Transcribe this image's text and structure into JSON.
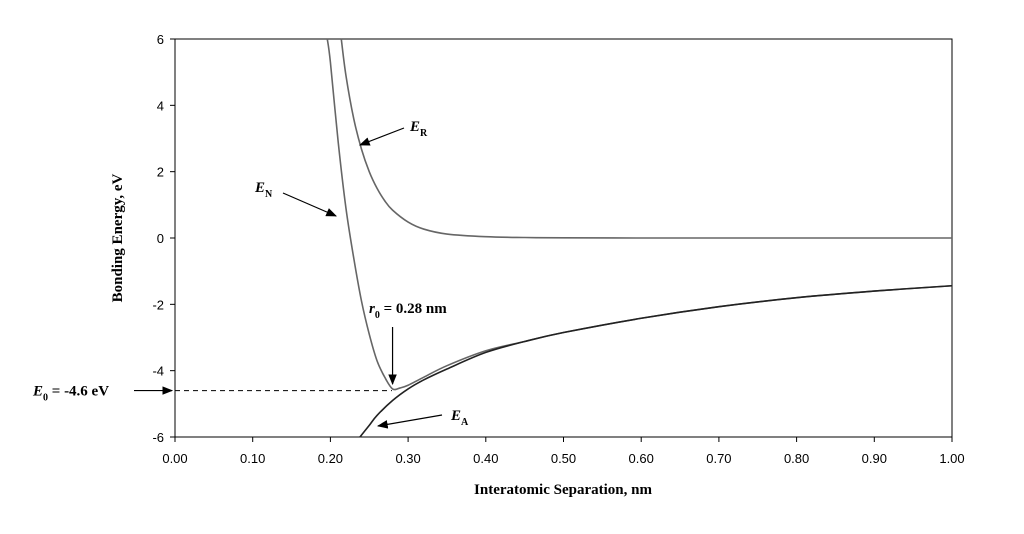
{
  "chart_data": {
    "type": "line",
    "title": "",
    "xlabel": "Interatomic Separation, nm",
    "ylabel": "Bonding Energy, eV",
    "xlim": [
      0,
      1
    ],
    "ylim": [
      -6,
      6
    ],
    "x_ticks": [
      "0.00",
      "0.10",
      "0.20",
      "0.30",
      "0.40",
      "0.50",
      "0.60",
      "0.70",
      "0.80",
      "0.90",
      "1.00"
    ],
    "y_ticks": [
      "6",
      "4",
      "2",
      "0",
      "-2",
      "-4",
      "-6"
    ],
    "grid": false,
    "legend": "none",
    "series": [
      {
        "name": "E_R",
        "color": "#666666",
        "x": [
          0.214,
          0.22,
          0.23,
          0.24,
          0.25,
          0.26,
          0.27,
          0.28,
          0.3,
          0.32,
          0.35,
          0.4,
          0.45,
          0.5,
          0.6,
          0.7,
          0.8,
          0.9,
          1.0
        ],
        "y": [
          6.0,
          4.9,
          3.6,
          2.68,
          2.0,
          1.5,
          1.12,
          0.84,
          0.48,
          0.27,
          0.12,
          0.04,
          0.015,
          0.005,
          0.0,
          0.0,
          0.0,
          0.0,
          0.0
        ]
      },
      {
        "name": "E_N",
        "color": "#666666",
        "x": [
          0.196,
          0.2,
          0.21,
          0.22,
          0.23,
          0.24,
          0.25,
          0.26,
          0.27,
          0.28,
          0.29,
          0.3,
          0.32,
          0.35,
          0.4,
          0.45,
          0.5,
          0.6,
          0.7,
          0.8,
          0.9,
          1.0
        ],
        "y": [
          6.0,
          5.3,
          2.9,
          0.9,
          -0.6,
          -1.9,
          -2.9,
          -3.7,
          -4.2,
          -4.55,
          -4.52,
          -4.44,
          -4.2,
          -3.85,
          -3.4,
          -3.12,
          -2.85,
          -2.42,
          -2.07,
          -1.8,
          -1.6,
          -1.44
        ]
      },
      {
        "name": "E_A",
        "color": "#222222",
        "x": [
          0.238,
          0.25,
          0.26,
          0.28,
          0.3,
          0.32,
          0.35,
          0.4,
          0.45,
          0.5,
          0.6,
          0.7,
          0.8,
          0.9,
          1.0
        ],
        "y": [
          -6.0,
          -5.65,
          -5.35,
          -4.9,
          -4.55,
          -4.28,
          -3.95,
          -3.45,
          -3.12,
          -2.85,
          -2.42,
          -2.07,
          -1.8,
          -1.6,
          -1.44
        ]
      }
    ],
    "annotations": {
      "er_main": "E",
      "er_sub": "R",
      "en_main": "E",
      "en_sub": "N",
      "ea_main": "E",
      "ea_sub": "A",
      "r0_main": "r",
      "r0_sub": "0",
      "r0_value": " = 0.28 nm",
      "e0_main": "E",
      "e0_sub": "0",
      "e0_value": " = -4.6 eV",
      "r0_x": 0.28,
      "e0_y": -4.6
    }
  }
}
